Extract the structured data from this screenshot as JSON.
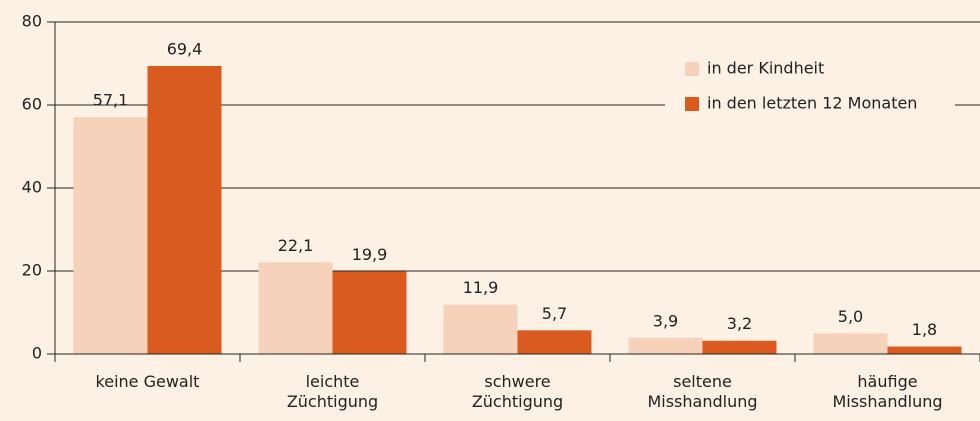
{
  "chart_data": {
    "type": "bar",
    "categories": [
      "keine Gewalt",
      "leichte Züchtigung",
      "schwere Züchtigung",
      "seltene Misshandlung",
      "häufige Misshandlung"
    ],
    "series": [
      {
        "name": "in der Kindheit",
        "color": "#f7d2ba",
        "values": [
          57.1,
          22.1,
          11.9,
          3.9,
          5.0
        ],
        "value_labels": [
          "57,1",
          "22,1",
          "11,9",
          "3,9",
          "5,0"
        ]
      },
      {
        "name": "in den letzten 12 Monaten",
        "color": "#d95b1f",
        "values": [
          69.4,
          19.9,
          5.7,
          3.2,
          1.8
        ],
        "value_labels": [
          "69,4",
          "19,9",
          "5,7",
          "3,2",
          "1,8"
        ]
      }
    ],
    "ylim": [
      0,
      80
    ],
    "yticks": [
      0,
      20,
      40,
      60,
      80
    ],
    "grid": true,
    "legend": "upper right"
  }
}
